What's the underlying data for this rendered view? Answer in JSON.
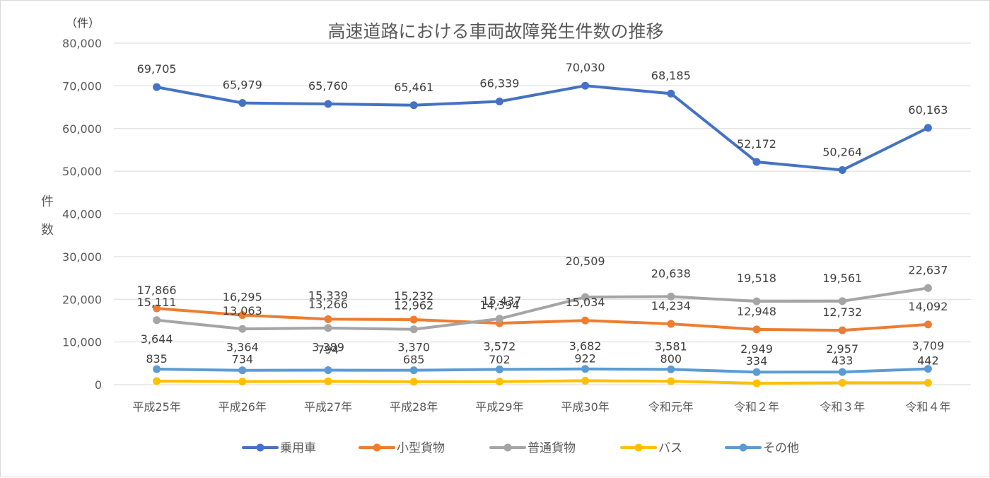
{
  "chart_data": {
    "type": "line",
    "title": "高速道路における車両故障発生件数の推移",
    "unit_label": "（件）",
    "ylabel": "件数",
    "ylim": [
      0,
      80000
    ],
    "yticks": [
      0,
      10000,
      20000,
      30000,
      40000,
      50000,
      60000,
      70000,
      80000
    ],
    "ytick_labels": [
      "0",
      "10,000",
      "20,000",
      "30,000",
      "40,000",
      "50,000",
      "60,000",
      "70,000",
      "80,000"
    ],
    "categories": [
      "平成25年",
      "平成26年",
      "平成27年",
      "平成28年",
      "平成29年",
      "平成30年",
      "令和元年",
      "令和２年",
      "令和３年",
      "令和４年"
    ],
    "grid": true,
    "legend_position": "bottom",
    "series": [
      {
        "name": "乗用車",
        "color": "#4472C4",
        "values": [
          69705,
          65979,
          65760,
          65461,
          66339,
          70030,
          68185,
          52172,
          50264,
          60163
        ],
        "labels": [
          "69,705",
          "65,979",
          "65,760",
          "65,461",
          "66,339",
          "70,030",
          "68,185",
          "52,172",
          "50,264",
          "60,163"
        ]
      },
      {
        "name": "小型貨物",
        "color": "#ED7D31",
        "values": [
          17866,
          16295,
          15339,
          15232,
          14394,
          15034,
          14234,
          12948,
          12732,
          14092
        ],
        "labels": [
          "17,866",
          "16,295",
          "15,339",
          "15,232",
          "14,394",
          "15,034",
          "14,234",
          "12,948",
          "12,732",
          "14,092"
        ]
      },
      {
        "name": "普通貨物",
        "color": "#A5A5A5",
        "values": [
          15111,
          13063,
          13266,
          12962,
          15437,
          20509,
          20638,
          19518,
          19561,
          22637
        ],
        "labels": [
          "15,111",
          "13,063",
          "13,266",
          "12,962",
          "15,437",
          "20,509",
          "20,638",
          "19,518",
          "19,561",
          "22,637"
        ]
      },
      {
        "name": "バス",
        "color": "#FFC000",
        "values": [
          835,
          734,
          794,
          685,
          702,
          922,
          800,
          334,
          433,
          442
        ],
        "labels": [
          "835",
          "734",
          "794",
          "685",
          "702",
          "922",
          "800",
          "334",
          "433",
          "442"
        ]
      },
      {
        "name": "その他",
        "color": "#5B9BD5",
        "values": [
          3644,
          3364,
          3389,
          3370,
          3572,
          3682,
          3581,
          2949,
          2957,
          3709
        ],
        "labels": [
          "3,644",
          "3,364",
          "3,389",
          "3,370",
          "3,572",
          "3,682",
          "3,581",
          "2,949",
          "2,957",
          "3,709"
        ]
      }
    ]
  }
}
